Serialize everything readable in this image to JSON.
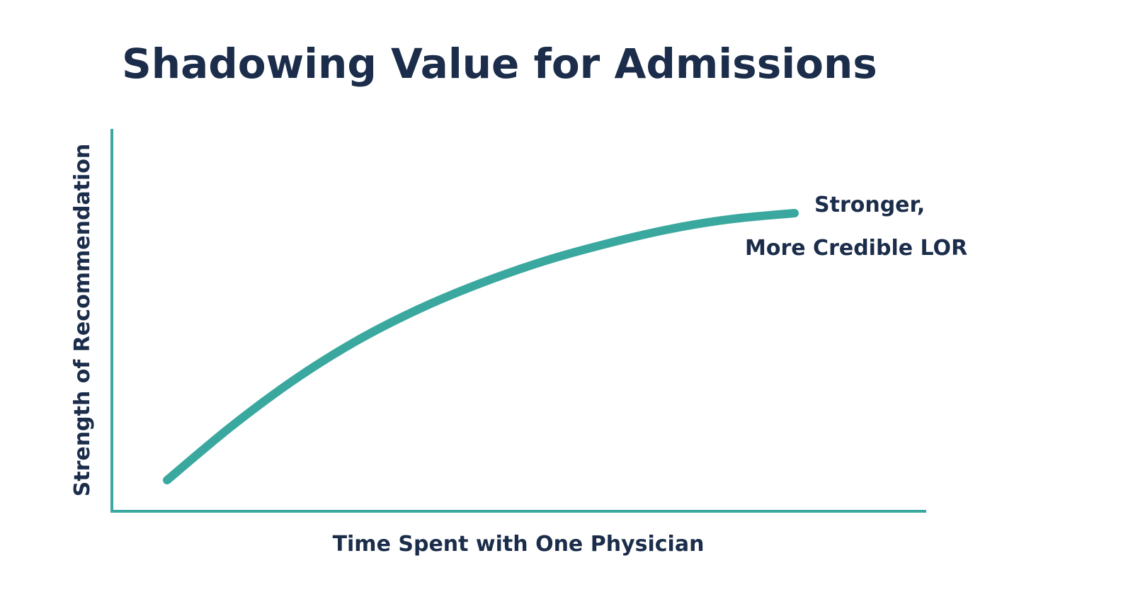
{
  "chart_data": {
    "type": "line",
    "title": "Shadowing Value for Admissions",
    "xlabel": "Time Spent with One Physician",
    "ylabel": "Strength of Recommendation",
    "xlim": [
      0,
      100
    ],
    "ylim": [
      0,
      100
    ],
    "grid": false,
    "legend": "none",
    "series": [
      {
        "x": [
          0,
          10,
          20,
          30,
          40,
          50,
          60,
          70,
          80,
          90,
          100
        ],
        "y": [
          0,
          18,
          34,
          47.5,
          58.5,
          67.5,
          75,
          81,
          86,
          89.5,
          91.5
        ]
      }
    ],
    "annotations": [
      {
        "line1": "Stronger,",
        "line2": "More Credible LOR"
      }
    ],
    "colors": {
      "line": "#3aa89f",
      "text": "#1b2d4a"
    }
  }
}
